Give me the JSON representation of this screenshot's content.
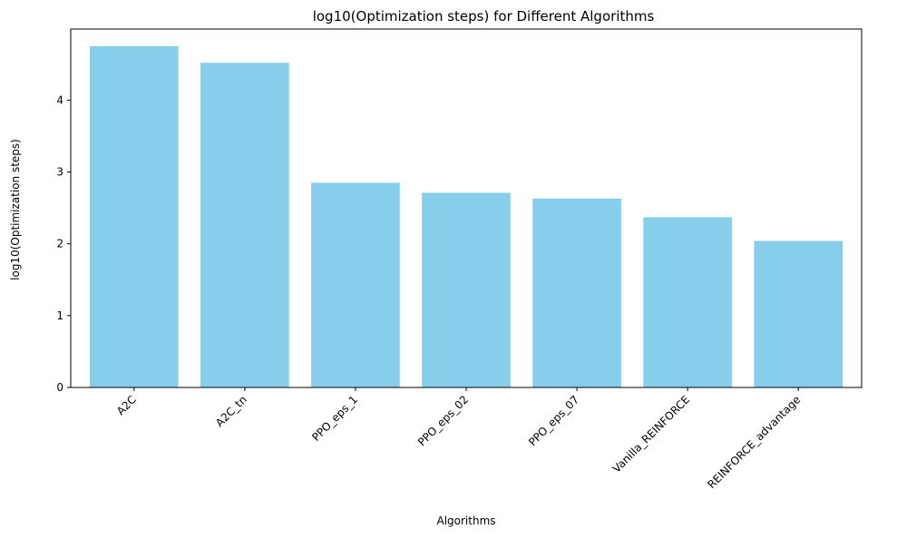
{
  "chart_data": {
    "type": "bar",
    "title": "log10(Optimization steps) for Different Algorithms",
    "xlabel": "Algorithms",
    "ylabel": "log10(Optimization steps)",
    "categories": [
      "A2C",
      "A2C_tn",
      "PPO_eps_1",
      "PPO_eps_02",
      "PPO_eps_07",
      "Vanilla_REINFORCE",
      "REINFORCE_advantage"
    ],
    "values": [
      4.75,
      4.52,
      2.85,
      2.71,
      2.63,
      2.37,
      2.04
    ],
    "yticks": [
      0,
      1,
      2,
      3,
      4
    ],
    "ylim": [
      0,
      4.99
    ],
    "grid": false,
    "bar_color": "#87ceeb",
    "legend": null
  }
}
